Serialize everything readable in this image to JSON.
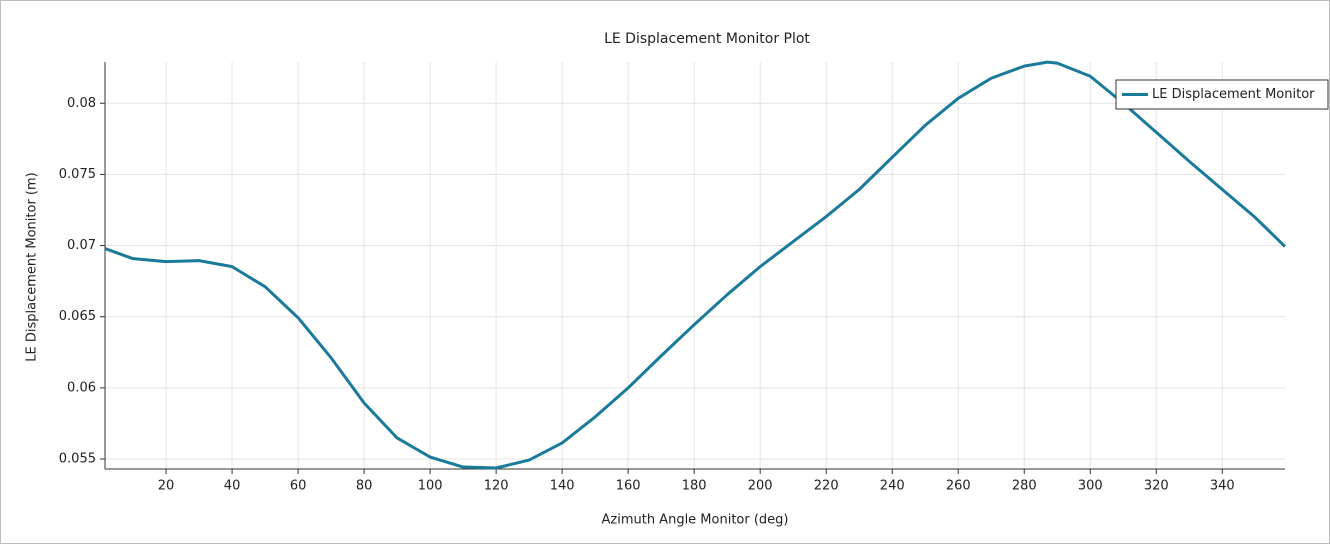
{
  "chart_data": {
    "type": "line",
    "title": "LE Displacement Monitor Plot",
    "x_label": "Azimuth Angle Monitor (deg)",
    "y_label": "LE Displacement Monitor (m)",
    "x": [
      1.5,
      10,
      20,
      30,
      40,
      50,
      60,
      70,
      80,
      90,
      100,
      110,
      120,
      130,
      140,
      150,
      160,
      170,
      180,
      190,
      200,
      210,
      220,
      230,
      240,
      250,
      260,
      270,
      280,
      287,
      290,
      300,
      310,
      320,
      330,
      340,
      350,
      359
    ],
    "series": [
      {
        "name": "LE Displacement Monitor",
        "color": "#1a7a9a",
        "values": [
          0.06979,
          0.06908,
          0.06887,
          0.06894,
          0.06852,
          0.06711,
          0.06493,
          0.06211,
          0.05894,
          0.05648,
          0.05514,
          0.05444,
          0.05437,
          0.05493,
          0.05613,
          0.05796,
          0.06,
          0.06225,
          0.06444,
          0.06655,
          0.06852,
          0.07028,
          0.07204,
          0.07394,
          0.0762,
          0.07845,
          0.08035,
          0.08176,
          0.08261,
          0.08289,
          0.08282,
          0.0819,
          0.08,
          0.07796,
          0.07592,
          0.07394,
          0.07197,
          0.06993
        ]
      }
    ],
    "xlim": [
      1.5,
      359
    ],
    "ylim": [
      0.0543,
      0.0829
    ],
    "xticks": [
      20,
      40,
      60,
      80,
      100,
      120,
      140,
      160,
      180,
      200,
      220,
      240,
      260,
      280,
      300,
      320,
      340
    ],
    "yticks": [
      0.055,
      0.06,
      0.065,
      0.07,
      0.075,
      0.08
    ],
    "grid": true,
    "legend": "upper right"
  }
}
